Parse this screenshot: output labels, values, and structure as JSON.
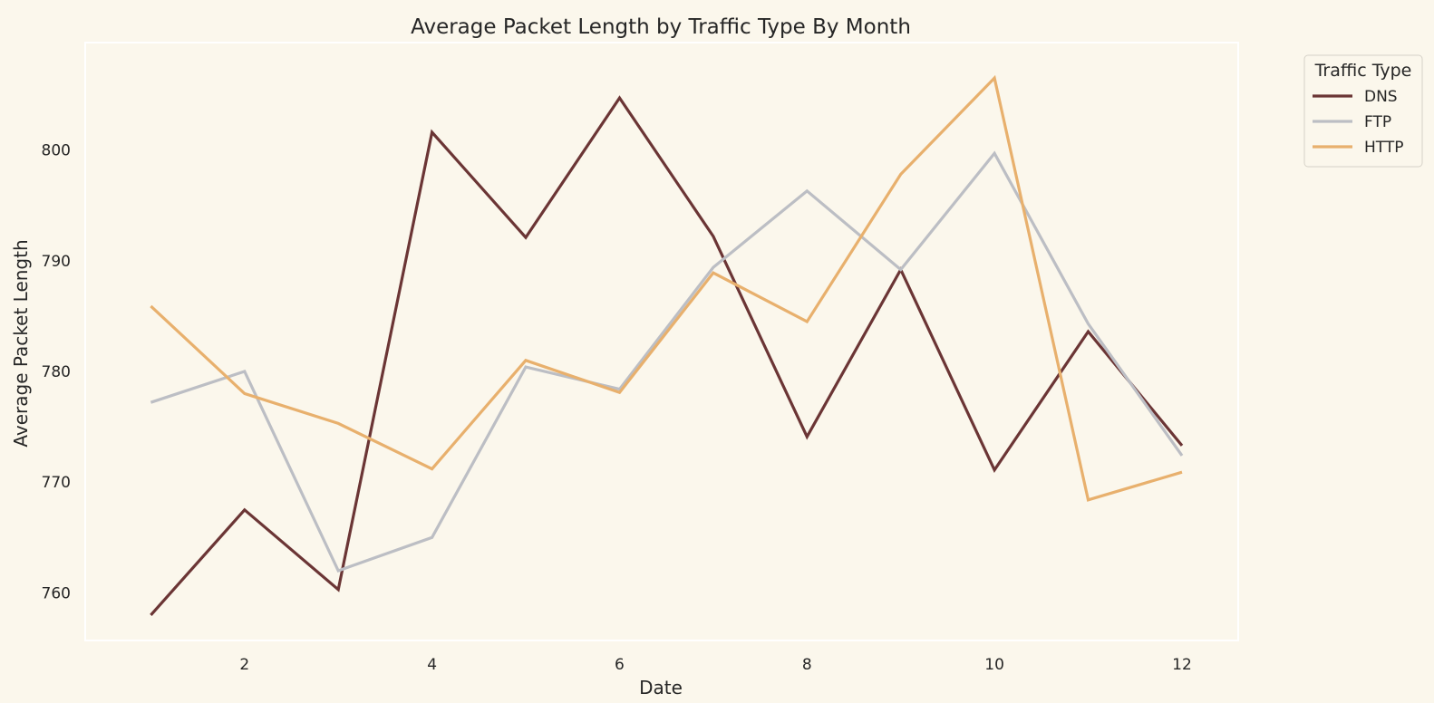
{
  "chart_data": {
    "type": "line",
    "title": "Average Packet Length by Traffic Type By Month",
    "xlabel": "Date",
    "ylabel": "Average Packet Length",
    "x": [
      1,
      2,
      3,
      4,
      5,
      6,
      7,
      8,
      9,
      10,
      11,
      12
    ],
    "xlim": [
      0.3,
      12.6
    ],
    "ylim": [
      755.7,
      809.7
    ],
    "xticks": [
      2,
      4,
      6,
      8,
      10,
      12
    ],
    "yticks": [
      760,
      770,
      780,
      790,
      800
    ],
    "grid": false,
    "legend": {
      "title": "Traffic Type",
      "placement": "outside upper-right"
    },
    "series": [
      {
        "name": "DNS",
        "color": "#6b3535",
        "values": [
          758.0,
          767.5,
          760.3,
          801.6,
          792.1,
          804.7,
          792.2,
          774.1,
          789.2,
          771.1,
          783.6,
          773.3
        ]
      },
      {
        "name": "FTP",
        "color": "#bcbec4",
        "values": [
          777.2,
          780.0,
          762.0,
          765.0,
          780.4,
          778.4,
          789.4,
          796.3,
          789.2,
          799.7,
          784.3,
          772.4
        ]
      },
      {
        "name": "HTTP",
        "color": "#e8b06d",
        "values": [
          785.9,
          778.0,
          775.3,
          771.2,
          781.0,
          778.1,
          788.9,
          784.5,
          797.8,
          806.5,
          768.4,
          770.9
        ]
      }
    ],
    "background": "#fbf7ec",
    "plot_border_color": "#ffffff"
  }
}
